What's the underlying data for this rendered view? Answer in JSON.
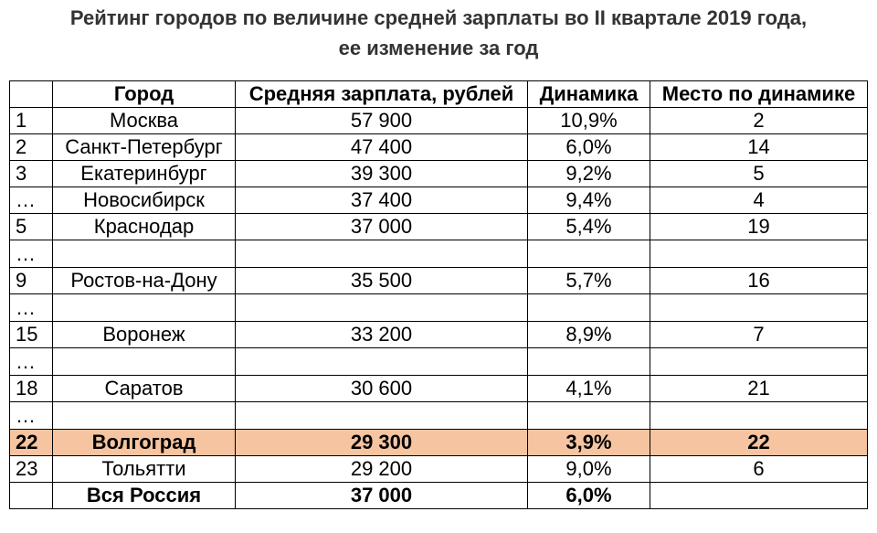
{
  "title": {
    "line1": "Рейтинг городов по величине средней зарплаты во II квартале 2019 года,",
    "line2": "ее изменение за год"
  },
  "table": {
    "headers": [
      "",
      "Город",
      "Средняя зарплата, рублей",
      "Динамика",
      "Место по динамике"
    ],
    "rows": [
      {
        "rank": "1",
        "city": "Москва",
        "salary": "57 900",
        "change": "10,9%",
        "place": "2"
      },
      {
        "rank": "2",
        "city": "Санкт-Петербург",
        "salary": "47 400",
        "change": "6,0%",
        "place": "14"
      },
      {
        "rank": "3",
        "city": "Екатеринбург",
        "salary": "39 300",
        "change": "9,2%",
        "place": "5"
      },
      {
        "rank": "…",
        "city": "Новосибирск",
        "salary": "37 400",
        "change": "9,4%",
        "place": "4"
      },
      {
        "rank": "5",
        "city": "Краснодар",
        "salary": "37 000",
        "change": "5,4%",
        "place": "19"
      },
      {
        "rank": "…",
        "city": "",
        "salary": "",
        "change": "",
        "place": ""
      },
      {
        "rank": "9",
        "city": "Ростов-на-Дону",
        "salary": "35 500",
        "change": "5,7%",
        "place": "16"
      },
      {
        "rank": "…",
        "city": "",
        "salary": "",
        "change": "",
        "place": ""
      },
      {
        "rank": "15",
        "city": "Воронеж",
        "salary": "33 200",
        "change": "8,9%",
        "place": "7"
      },
      {
        "rank": "…",
        "city": "",
        "salary": "",
        "change": "",
        "place": ""
      },
      {
        "rank": "18",
        "city": "Саратов",
        "salary": "30 600",
        "change": "4,1%",
        "place": "21"
      },
      {
        "rank": "…",
        "city": "",
        "salary": "",
        "change": "",
        "place": ""
      },
      {
        "rank": "22",
        "city": "Волгоград",
        "salary": "29 300",
        "change": "3,9%",
        "place": "22"
      },
      {
        "rank": "23",
        "city": "Тольятти",
        "salary": "29 200",
        "change": "9,0%",
        "place": "6"
      },
      {
        "rank": "",
        "city": "Вся Россия",
        "salary": "37 000",
        "change": "6,0%",
        "place": ""
      }
    ]
  },
  "colors": {
    "highlight": "#f6c4a0"
  }
}
